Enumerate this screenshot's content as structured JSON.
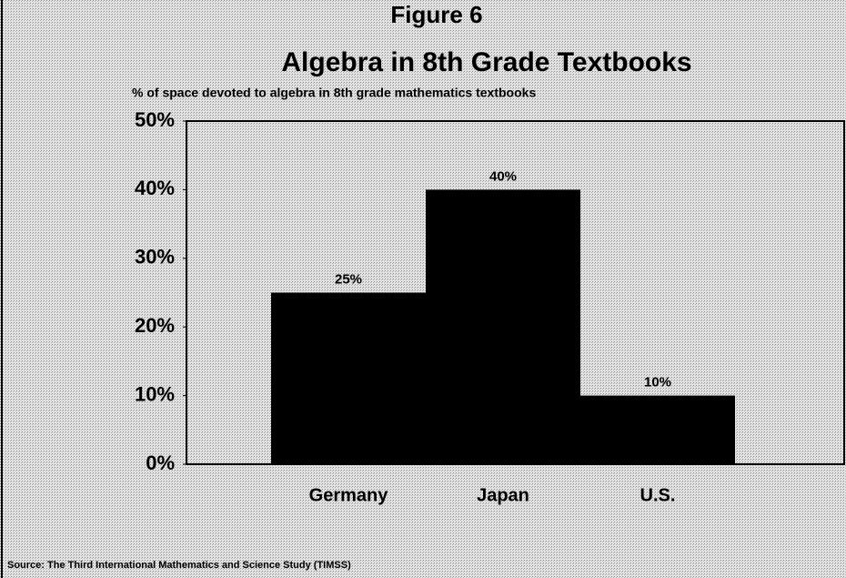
{
  "chart_data": {
    "type": "bar",
    "figure_label": "Figure 6",
    "title": "Algebra in 8th Grade Textbooks",
    "subtitle": "% of space devoted to algebra in 8th grade mathematics textbooks",
    "categories": [
      "Germany",
      "Japan",
      "U.S."
    ],
    "values": [
      25,
      40,
      10
    ],
    "value_labels": [
      "25%",
      "40%",
      "10%"
    ],
    "color": "#000000",
    "ylim": [
      0,
      50
    ],
    "yticks": [
      {
        "value": 0,
        "label": "0%"
      },
      {
        "value": 10,
        "label": "10%"
      },
      {
        "value": 20,
        "label": "20%"
      },
      {
        "value": 30,
        "label": "30%"
      },
      {
        "value": 40,
        "label": "40%"
      },
      {
        "value": 50,
        "label": "50%"
      }
    ],
    "grid": false,
    "source": "Source:   The Third International Mathematics and Science Study (TIMSS)"
  }
}
